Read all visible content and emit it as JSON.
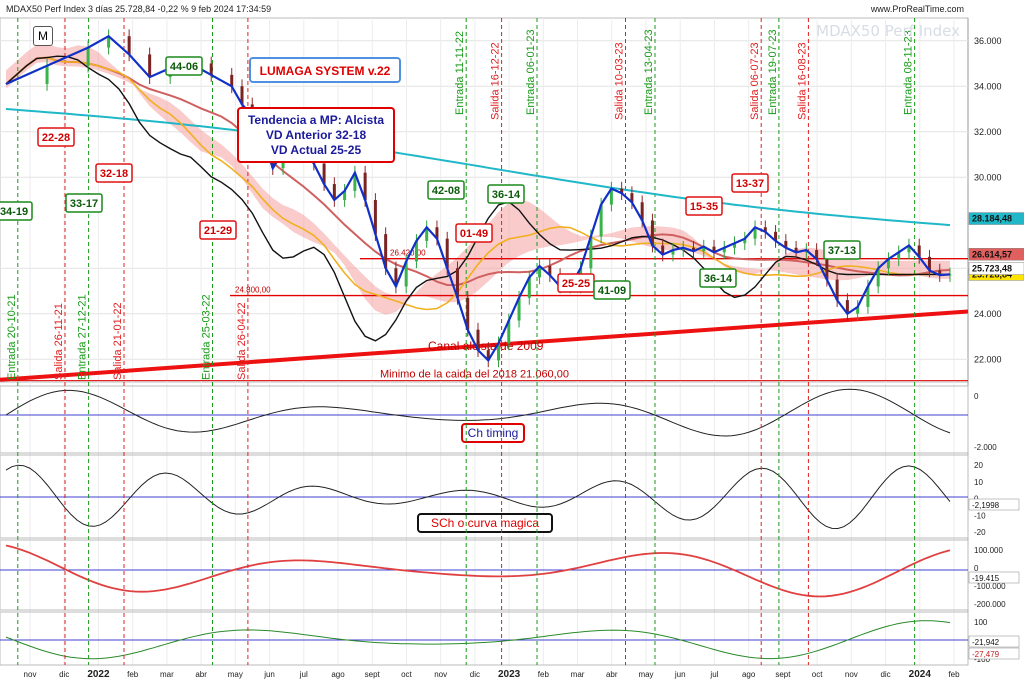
{
  "header": {
    "title": "MDAX50 Perf Index 3 días 25.728,84 -0,22 % 9 feb 2024 17:34:59",
    "source": "www.ProRealTime.com",
    "watermark": "MDAX50 Perf Index",
    "m_label": "M"
  },
  "chart_data": {
    "type": "line",
    "y_ticks_main": [
      "36.000",
      "34.000",
      "32.000",
      "30.000",
      "26.000",
      "24.000",
      "22.000"
    ],
    "price_badges": [
      "28.184,48",
      "26.614,57",
      "25.728,84",
      "25.723,48"
    ],
    "x_ticks": [
      "nov",
      "dic",
      "2022",
      "feb",
      "mar",
      "abr",
      "may",
      "jun",
      "jul",
      "ago",
      "sept",
      "oct",
      "nov",
      "dic",
      "2023",
      "feb",
      "mar",
      "abr",
      "may",
      "jun",
      "jul",
      "ago",
      "sept",
      "oct",
      "nov",
      "dic",
      "2024",
      "feb"
    ],
    "ylim_main": [
      21000,
      37000
    ],
    "close_series": [
      [
        0,
        34100
      ],
      [
        4,
        34900
      ],
      [
        8,
        35700
      ],
      [
        10,
        36200
      ],
      [
        12,
        35400
      ],
      [
        14,
        34400
      ],
      [
        16,
        34800
      ],
      [
        18,
        35000
      ],
      [
        20,
        34500
      ],
      [
        22,
        34000
      ],
      [
        23,
        33200
      ],
      [
        24,
        32700
      ],
      [
        25,
        31800
      ],
      [
        26,
        30400
      ],
      [
        27,
        31100
      ],
      [
        28,
        31600
      ],
      [
        29,
        31400
      ],
      [
        30,
        30600
      ],
      [
        31,
        29700
      ],
      [
        32,
        29000
      ],
      [
        33,
        29400
      ],
      [
        34,
        30200
      ],
      [
        35,
        29000
      ],
      [
        36,
        27500
      ],
      [
        37,
        26000
      ],
      [
        38,
        25200
      ],
      [
        39,
        26300
      ],
      [
        40,
        27200
      ],
      [
        41,
        27800
      ],
      [
        42,
        27300
      ],
      [
        43,
        26000
      ],
      [
        44,
        24700
      ],
      [
        45,
        23300
      ],
      [
        46,
        22400
      ],
      [
        47,
        21950
      ],
      [
        48,
        22700
      ],
      [
        49,
        23700
      ],
      [
        50,
        24700
      ],
      [
        51,
        25600
      ],
      [
        52,
        26100
      ],
      [
        53,
        25700
      ],
      [
        54,
        25200
      ],
      [
        55,
        25200
      ],
      [
        56,
        26000
      ],
      [
        57,
        27400
      ],
      [
        58,
        28800
      ],
      [
        59,
        29500
      ],
      [
        60,
        29300
      ],
      [
        61,
        28900
      ],
      [
        62,
        28100
      ],
      [
        63,
        27000
      ],
      [
        64,
        26600
      ],
      [
        65,
        26800
      ],
      [
        66,
        26900
      ],
      [
        67,
        26750
      ],
      [
        68,
        26950
      ],
      [
        69,
        26700
      ],
      [
        70,
        26900
      ],
      [
        71,
        27100
      ],
      [
        72,
        27300
      ],
      [
        73,
        27800
      ],
      [
        74,
        27600
      ],
      [
        75,
        27200
      ],
      [
        76,
        26900
      ],
      [
        77,
        26700
      ],
      [
        78,
        26800
      ],
      [
        79,
        26400
      ],
      [
        80,
        25500
      ],
      [
        81,
        24600
      ],
      [
        82,
        24000
      ],
      [
        83,
        24300
      ],
      [
        84,
        25200
      ],
      [
        85,
        26000
      ],
      [
        86,
        26400
      ],
      [
        87,
        26700
      ],
      [
        88,
        27000
      ],
      [
        89,
        26500
      ],
      [
        90,
        25900
      ],
      [
        91,
        25700
      ],
      [
        92,
        25729
      ]
    ],
    "levels": [
      {
        "value": 26420,
        "label": "26.420,00"
      },
      {
        "value": 24800,
        "label": "24.800,00"
      },
      {
        "value": 21060,
        "label": "Minimo de la caida del 2018  21.060,00"
      }
    ],
    "trend_channel_label": "Canal alcista de 2009",
    "vertical_signals": [
      {
        "x": 2,
        "label": "Entrada 20-10-21",
        "kind": "entry"
      },
      {
        "x": 10,
        "label": "Salida 26-11-21",
        "kind": "exit"
      },
      {
        "x": 14,
        "label": "Entrada 27-12-21",
        "kind": "entry"
      },
      {
        "x": 20,
        "label": "Salida 21-01-22",
        "kind": "exit"
      },
      {
        "x": 35,
        "label": "Entrada 25-03-22",
        "kind": "entry"
      },
      {
        "x": 41,
        "label": "Salida 26-04-22",
        "kind": "exit"
      },
      {
        "x": 78,
        "label": "Entrada 11-11-22",
        "kind": "entry"
      },
      {
        "x": 84,
        "label": "Salida 16-12-22",
        "kind": "exit"
      },
      {
        "x": 90,
        "label": "Entrada 06-01-23",
        "kind": "entry"
      },
      {
        "x": 105,
        "label": "Salida 10-03-23",
        "kind": "exit"
      },
      {
        "x": 110,
        "label": "Entrada 13-04-23",
        "kind": "entry"
      },
      {
        "x": 128,
        "label": "Salida 06-07-23",
        "kind": "exit"
      },
      {
        "x": 131,
        "label": "Entrada 19-07-23",
        "kind": "entry"
      },
      {
        "x": 136,
        "label": "Salida 16-08-23",
        "kind": "exit"
      },
      {
        "x": 154,
        "label": "Entrada 08-11-23",
        "kind": "entry"
      }
    ],
    "cycle_labels": [
      {
        "text": "44-06",
        "color": "green"
      },
      {
        "text": "22-28",
        "color": "red"
      },
      {
        "text": "32-18",
        "color": "red"
      },
      {
        "text": "33-17",
        "color": "green"
      },
      {
        "text": "21-29",
        "color": "red"
      },
      {
        "text": "34-19",
        "color": "green"
      },
      {
        "text": "42-08",
        "color": "green"
      },
      {
        "text": "36-14",
        "color": "green"
      },
      {
        "text": "01-49",
        "color": "red"
      },
      {
        "text": "25-25",
        "color": "red"
      },
      {
        "text": "41-09",
        "color": "green"
      },
      {
        "text": "15-35",
        "color": "red"
      },
      {
        "text": "13-37",
        "color": "red"
      },
      {
        "text": "36-14",
        "color": "green"
      },
      {
        "text": "37-13",
        "color": "green"
      }
    ],
    "system_box": {
      "title": "LUMAGA SYSTEM v.22"
    },
    "trend_box": {
      "line1": "Tendencia a MP: Alcista",
      "line2": "VD Anterior 32-18",
      "line3": "VD Actual 25-25"
    },
    "panels": [
      {
        "label": "Ch timing",
        "ticks": [
          "0",
          "-2.000"
        ]
      },
      {
        "label": "SCh o curva magica",
        "ticks": [
          "20",
          "10",
          "0",
          "-10",
          "-20"
        ],
        "badge": "-2,1998"
      },
      {
        "label": "",
        "ticks": [
          "100.000",
          "0",
          "-100.000",
          "-200.000"
        ],
        "badge": "-19.415"
      },
      {
        "label": "",
        "ticks": [
          "100",
          "0",
          "-100"
        ],
        "badges": [
          "-21,942",
          "-27,479"
        ]
      }
    ]
  }
}
